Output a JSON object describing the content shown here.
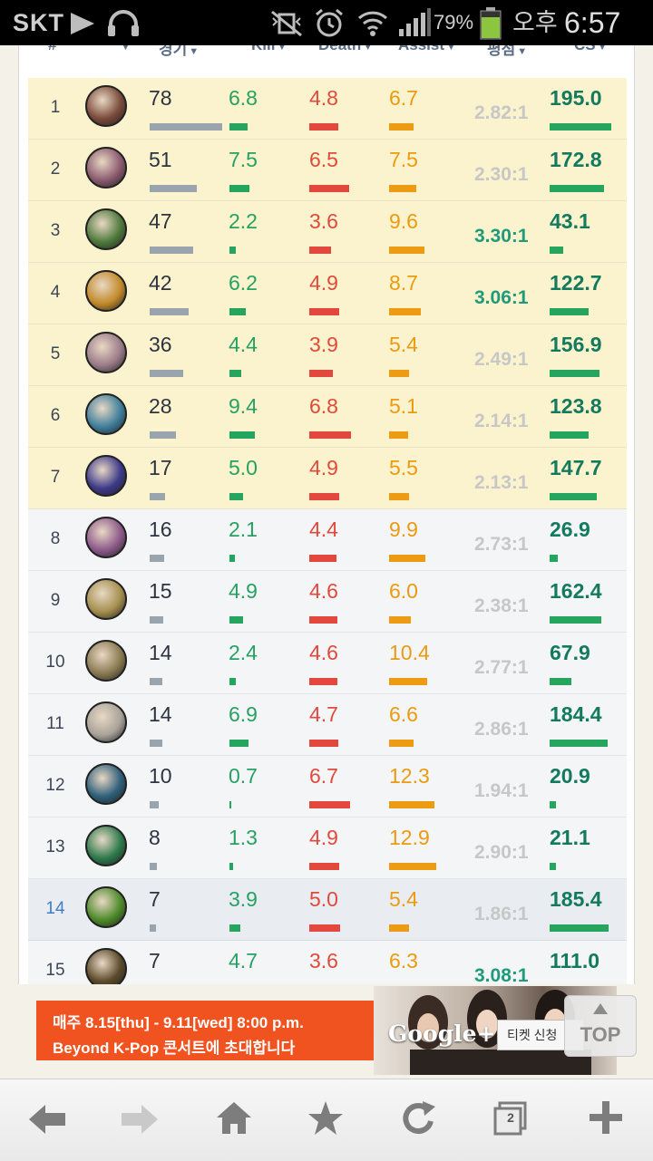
{
  "statusbar": {
    "carrier": "SKT",
    "battery": "79%",
    "ampm": "오후",
    "time": "6:57"
  },
  "table": {
    "headers": {
      "rank": "#",
      "games": "경기",
      "kill": "Kill",
      "death": "Death",
      "assist": "Assist",
      "kda": "평점",
      "cs": "CS"
    },
    "rows": [
      {
        "rank": "1",
        "games": "78",
        "kill": "6.8",
        "death": "4.8",
        "assist": "6.7",
        "kda": "2.82:1",
        "cs": "195.0",
        "kda_good": false,
        "style": "hl",
        "avatar": "#7a4a3a"
      },
      {
        "rank": "2",
        "games": "51",
        "kill": "7.5",
        "death": "6.5",
        "assist": "7.5",
        "kda": "2.30:1",
        "cs": "172.8",
        "kda_good": false,
        "style": "hl",
        "avatar": "#8a5a6e"
      },
      {
        "rank": "3",
        "games": "47",
        "kill": "2.2",
        "death": "3.6",
        "assist": "9.6",
        "kda": "3.30:1",
        "cs": "43.1",
        "kda_good": true,
        "style": "hl",
        "avatar": "#4f7a3c"
      },
      {
        "rank": "4",
        "games": "42",
        "kill": "6.2",
        "death": "4.9",
        "assist": "8.7",
        "kda": "3.06:1",
        "cs": "122.7",
        "kda_good": true,
        "style": "hl",
        "avatar": "#c28a2a"
      },
      {
        "rank": "5",
        "games": "36",
        "kill": "4.4",
        "death": "3.9",
        "assist": "5.4",
        "kda": "2.49:1",
        "cs": "156.9",
        "kda_good": false,
        "style": "hl",
        "avatar": "#9b7c8a"
      },
      {
        "rank": "6",
        "games": "28",
        "kill": "9.4",
        "death": "6.8",
        "assist": "5.1",
        "kda": "2.14:1",
        "cs": "123.8",
        "kda_good": false,
        "style": "hl",
        "avatar": "#3f7f9c"
      },
      {
        "rank": "7",
        "games": "17",
        "kill": "5.0",
        "death": "4.9",
        "assist": "5.5",
        "kda": "2.13:1",
        "cs": "147.7",
        "kda_good": false,
        "style": "hl",
        "avatar": "#3d3a8a"
      },
      {
        "rank": "8",
        "games": "16",
        "kill": "2.1",
        "death": "4.4",
        "assist": "9.9",
        "kda": "2.73:1",
        "cs": "26.9",
        "kda_good": false,
        "style": "plain",
        "avatar": "#8d5a8a"
      },
      {
        "rank": "9",
        "games": "15",
        "kill": "4.9",
        "death": "4.6",
        "assist": "6.0",
        "kda": "2.38:1",
        "cs": "162.4",
        "kda_good": false,
        "style": "plain",
        "avatar": "#a58f4e"
      },
      {
        "rank": "10",
        "games": "14",
        "kill": "2.4",
        "death": "4.6",
        "assist": "10.4",
        "kda": "2.77:1",
        "cs": "67.9",
        "kda_good": false,
        "style": "plain",
        "avatar": "#8a7b52"
      },
      {
        "rank": "11",
        "games": "14",
        "kill": "6.9",
        "death": "4.7",
        "assist": "6.6",
        "kda": "2.86:1",
        "cs": "184.4",
        "kda_good": false,
        "style": "plain",
        "avatar": "#a9a39a"
      },
      {
        "rank": "12",
        "games": "10",
        "kill": "0.7",
        "death": "6.7",
        "assist": "12.3",
        "kda": "1.94:1",
        "cs": "20.9",
        "kda_good": false,
        "style": "plain",
        "avatar": "#2f5f7a"
      },
      {
        "rank": "13",
        "games": "8",
        "kill": "1.3",
        "death": "4.9",
        "assist": "12.9",
        "kda": "2.90:1",
        "cs": "21.1",
        "kda_good": false,
        "style": "plain",
        "avatar": "#2e7a4c"
      },
      {
        "rank": "14",
        "games": "7",
        "kill": "3.9",
        "death": "5.0",
        "assist": "5.4",
        "kda": "1.86:1",
        "cs": "185.4",
        "kda_good": false,
        "style": "sel",
        "avatar": "#4e8a2a"
      },
      {
        "rank": "15",
        "games": "7",
        "kill": "4.7",
        "death": "3.6",
        "assist": "6.3",
        "kda": "3.08:1",
        "cs": "111.0",
        "kda_good": true,
        "style": "plain",
        "avatar": "#5a4a2a"
      }
    ]
  },
  "ad": {
    "line1": "매주 8.15[thu] - 9.11[wed] 8:00 p.m.",
    "line2": "Beyond K-Pop 콘서트에 초대합니다",
    "brand": "Google+",
    "ticket": "티켓 신청"
  },
  "top_button": {
    "label": "TOP"
  },
  "toolbar": {
    "tabs_count": "2"
  },
  "colors": {
    "kill": "#25a55e",
    "death": "#e2483d",
    "assist": "#ee9b14",
    "games_bar": "#99a4ad",
    "highlight_row": "#fbf3cd"
  }
}
